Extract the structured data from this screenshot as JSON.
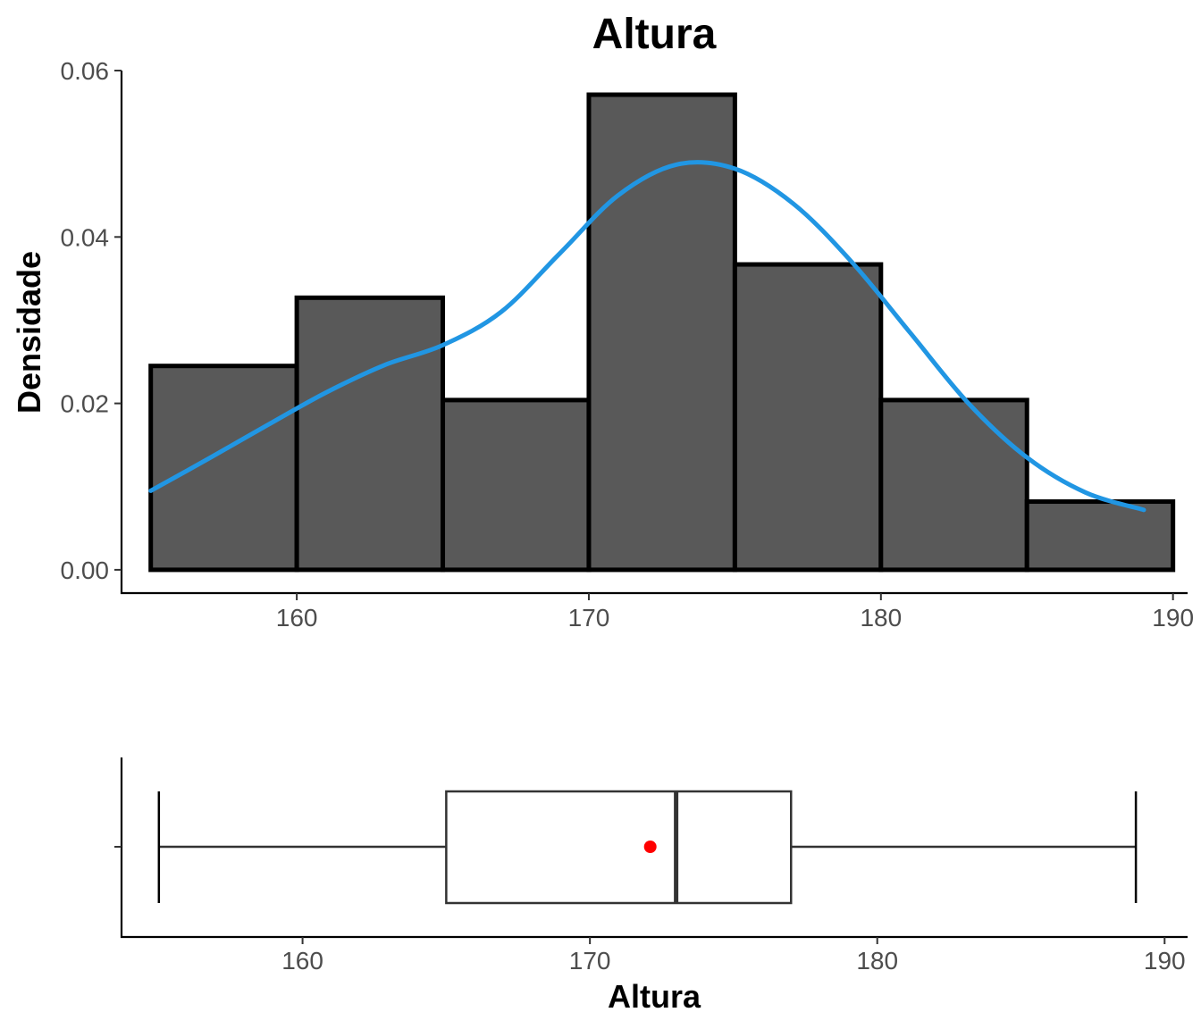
{
  "chart_data": [
    {
      "type": "bar",
      "subtype": "histogram_with_density",
      "title": "Altura",
      "xlabel": "",
      "ylabel": "Densidade",
      "xlim": [
        154,
        190.5
      ],
      "ylim": [
        -0.0028,
        0.06
      ],
      "x_ticks": [
        "160",
        "170",
        "180",
        "190"
      ],
      "y_ticks": [
        "0.00",
        "0.02",
        "0.04",
        "0.06"
      ],
      "bins": [
        {
          "x0": 155,
          "x1": 160,
          "value": 0.0245
        },
        {
          "x0": 160,
          "x1": 165,
          "value": 0.0327
        },
        {
          "x0": 165,
          "x1": 170,
          "value": 0.0204
        },
        {
          "x0": 170,
          "x1": 175,
          "value": 0.0571
        },
        {
          "x0": 175,
          "x1": 180,
          "value": 0.0367
        },
        {
          "x0": 180,
          "x1": 185,
          "value": 0.0204
        },
        {
          "x0": 185,
          "x1": 190,
          "value": 0.0082
        }
      ],
      "density_curve": {
        "x": [
          155,
          157,
          159,
          161,
          163,
          165,
          167,
          169,
          171,
          173,
          175,
          177,
          179,
          181,
          183,
          185,
          187,
          189
        ],
        "y": [
          0.0095,
          0.0134,
          0.0174,
          0.0213,
          0.0246,
          0.027,
          0.031,
          0.038,
          0.045,
          0.0487,
          0.0482,
          0.044,
          0.037,
          0.0285,
          0.02,
          0.0135,
          0.0093,
          0.0072
        ]
      },
      "bar_fill": "#595959",
      "bar_stroke": "#000000",
      "curve_color": "#2196e3",
      "grid": false
    },
    {
      "type": "boxplot",
      "xlabel": "Altura",
      "xlim": [
        153.7,
        190.8
      ],
      "x_ticks": [
        "160",
        "170",
        "180",
        "190"
      ],
      "box": {
        "min": 155,
        "q1": 165,
        "median": 173,
        "q3": 177,
        "max": 189,
        "mean": 172.1
      },
      "mean_color": "#ff0000",
      "box_stroke": "#333333",
      "grid": false
    }
  ]
}
